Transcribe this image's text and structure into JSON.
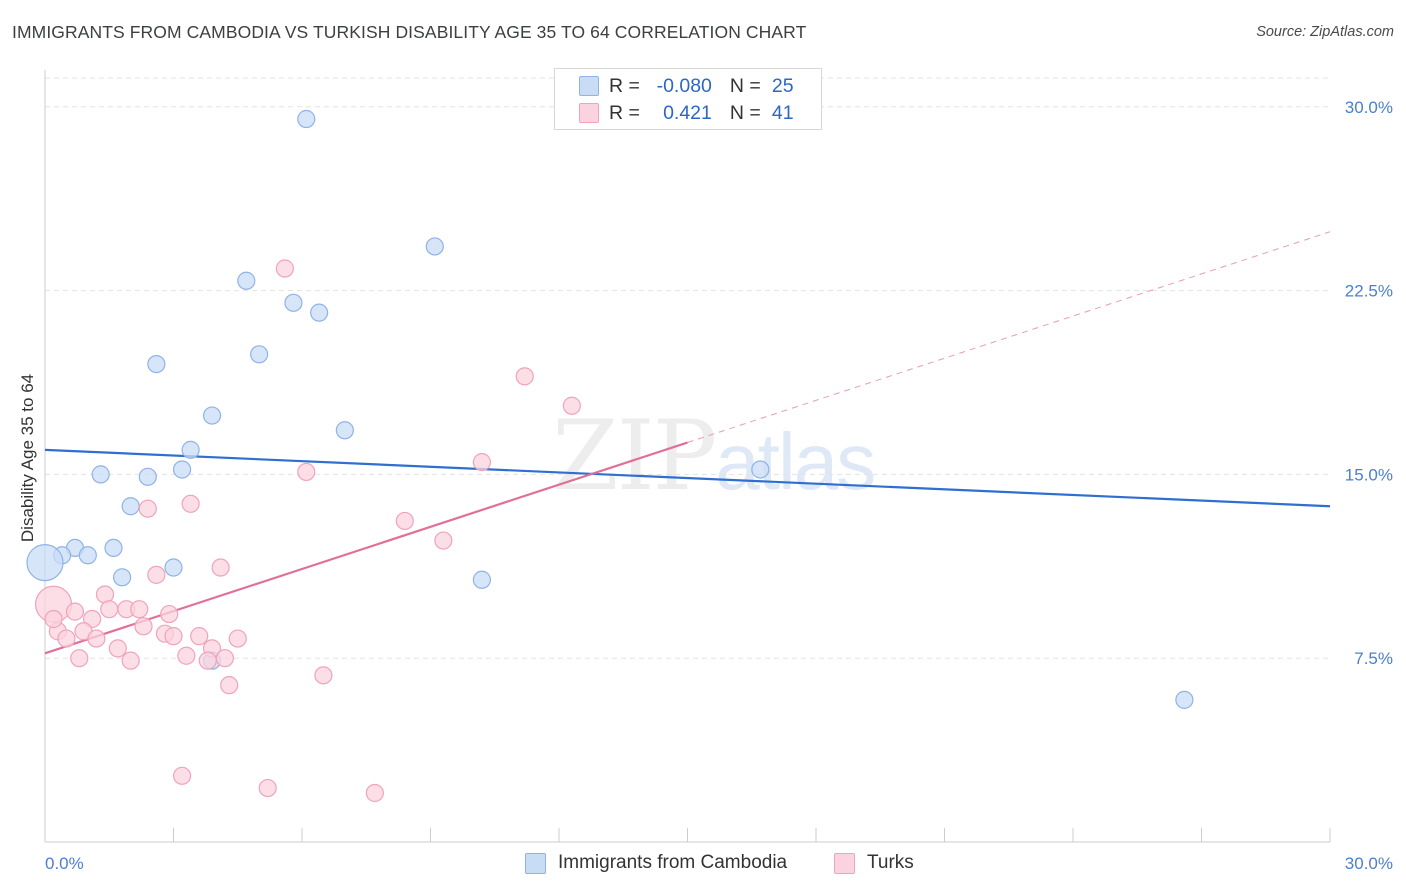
{
  "header": {
    "title": "IMMIGRANTS FROM CAMBODIA VS TURKISH DISABILITY AGE 35 TO 64 CORRELATION CHART",
    "source": "Source: ZipAtlas.com"
  },
  "legend": {
    "blue": {
      "r_label": "R =",
      "r_value": "-0.080",
      "n_label": "N =",
      "n_value": "25"
    },
    "pink": {
      "r_label": "R =",
      "r_value": "0.421",
      "n_label": "N =",
      "n_value": "41"
    }
  },
  "bottom_legend": {
    "blue_label": "Immigrants from Cambodia",
    "pink_label": "Turks"
  },
  "watermark": {
    "zip": "ZIP",
    "atlas": "atlas"
  },
  "colors": {
    "blue_fill": "#c9dcf6",
    "blue_stroke": "#8fb3e6",
    "blue_line": "#2f6fd0",
    "pink_fill": "#fbd3df",
    "pink_stroke": "#f0a3bb",
    "pink_line": "#e0709a",
    "grid": "#e3e3e3",
    "tick_text": "#4a7fd0"
  },
  "chart_data": {
    "type": "scatter",
    "title": "IMMIGRANTS FROM CAMBODIA VS TURKISH DISABILITY AGE 35 TO 64 CORRELATION CHART",
    "xlabel": "",
    "ylabel": "Disability Age 35 to 64",
    "xlim": [
      0,
      30
    ],
    "ylim": [
      0,
      31.5
    ],
    "x_tick_labels": [
      "0.0%",
      "30.0%"
    ],
    "y_ticks": [
      7.5,
      15.0,
      22.5,
      30.0
    ],
    "y_tick_labels": [
      "7.5%",
      "15.0%",
      "22.5%",
      "30.0%"
    ],
    "grid": true,
    "series": [
      {
        "name": "Immigrants from Cambodia",
        "color": "blue",
        "points": [
          {
            "x": 6.1,
            "y": 29.5,
            "r": "normal"
          },
          {
            "x": 9.1,
            "y": 24.3,
            "r": "normal"
          },
          {
            "x": 4.7,
            "y": 22.9,
            "r": "normal"
          },
          {
            "x": 6.4,
            "y": 21.6,
            "r": "normal"
          },
          {
            "x": 5.8,
            "y": 22.0,
            "r": "normal"
          },
          {
            "x": 5.0,
            "y": 19.9,
            "r": "normal"
          },
          {
            "x": 2.6,
            "y": 19.5,
            "r": "normal"
          },
          {
            "x": 3.9,
            "y": 17.4,
            "r": "normal"
          },
          {
            "x": 7.0,
            "y": 16.8,
            "r": "normal"
          },
          {
            "x": 3.4,
            "y": 16.0,
            "r": "normal"
          },
          {
            "x": 3.2,
            "y": 15.2,
            "r": "normal"
          },
          {
            "x": 1.3,
            "y": 15.0,
            "r": "normal"
          },
          {
            "x": 2.4,
            "y": 14.9,
            "r": "normal"
          },
          {
            "x": 16.7,
            "y": 15.2,
            "r": "normal"
          },
          {
            "x": 2.0,
            "y": 13.7,
            "r": "normal"
          },
          {
            "x": 0.7,
            "y": 12.0,
            "r": "normal"
          },
          {
            "x": 1.6,
            "y": 12.0,
            "r": "normal"
          },
          {
            "x": 1.0,
            "y": 11.7,
            "r": "normal"
          },
          {
            "x": 0.4,
            "y": 11.7,
            "r": "normal"
          },
          {
            "x": 3.0,
            "y": 11.2,
            "r": "normal"
          },
          {
            "x": 1.8,
            "y": 10.8,
            "r": "normal"
          },
          {
            "x": 10.2,
            "y": 10.7,
            "r": "normal"
          },
          {
            "x": 0.0,
            "y": 11.4,
            "r": "large"
          },
          {
            "x": 3.9,
            "y": 7.4,
            "r": "normal"
          },
          {
            "x": 26.6,
            "y": 5.8,
            "r": "normal"
          }
        ],
        "trend": {
          "x1": 0,
          "y1": 16.0,
          "x2": 30,
          "y2": 13.7
        }
      },
      {
        "name": "Turks",
        "color": "pink",
        "points": [
          {
            "x": 5.6,
            "y": 23.4,
            "r": "normal"
          },
          {
            "x": 11.2,
            "y": 19.0,
            "r": "normal"
          },
          {
            "x": 12.3,
            "y": 17.8,
            "r": "normal"
          },
          {
            "x": 10.2,
            "y": 15.5,
            "r": "normal"
          },
          {
            "x": 6.1,
            "y": 15.1,
            "r": "normal"
          },
          {
            "x": 3.4,
            "y": 13.8,
            "r": "normal"
          },
          {
            "x": 2.4,
            "y": 13.6,
            "r": "normal"
          },
          {
            "x": 8.4,
            "y": 13.1,
            "r": "normal"
          },
          {
            "x": 9.3,
            "y": 12.3,
            "r": "normal"
          },
          {
            "x": 4.1,
            "y": 11.2,
            "r": "normal"
          },
          {
            "x": 2.6,
            "y": 10.9,
            "r": "normal"
          },
          {
            "x": 1.4,
            "y": 10.1,
            "r": "normal"
          },
          {
            "x": 0.2,
            "y": 9.7,
            "r": "large"
          },
          {
            "x": 0.7,
            "y": 9.4,
            "r": "normal"
          },
          {
            "x": 1.1,
            "y": 9.1,
            "r": "normal"
          },
          {
            "x": 1.5,
            "y": 9.5,
            "r": "normal"
          },
          {
            "x": 1.9,
            "y": 9.5,
            "r": "normal"
          },
          {
            "x": 2.2,
            "y": 9.5,
            "r": "normal"
          },
          {
            "x": 2.9,
            "y": 9.3,
            "r": "normal"
          },
          {
            "x": 2.3,
            "y": 8.8,
            "r": "normal"
          },
          {
            "x": 0.3,
            "y": 8.6,
            "r": "normal"
          },
          {
            "x": 0.5,
            "y": 8.3,
            "r": "normal"
          },
          {
            "x": 0.9,
            "y": 8.6,
            "r": "normal"
          },
          {
            "x": 1.2,
            "y": 8.3,
            "r": "normal"
          },
          {
            "x": 2.8,
            "y": 8.5,
            "r": "normal"
          },
          {
            "x": 3.0,
            "y": 8.4,
            "r": "normal"
          },
          {
            "x": 3.6,
            "y": 8.4,
            "r": "normal"
          },
          {
            "x": 4.5,
            "y": 8.3,
            "r": "normal"
          },
          {
            "x": 1.7,
            "y": 7.9,
            "r": "normal"
          },
          {
            "x": 3.9,
            "y": 7.9,
            "r": "normal"
          },
          {
            "x": 0.8,
            "y": 7.5,
            "r": "normal"
          },
          {
            "x": 2.0,
            "y": 7.4,
            "r": "normal"
          },
          {
            "x": 3.3,
            "y": 7.6,
            "r": "normal"
          },
          {
            "x": 3.8,
            "y": 7.4,
            "r": "normal"
          },
          {
            "x": 4.2,
            "y": 7.5,
            "r": "normal"
          },
          {
            "x": 6.5,
            "y": 6.8,
            "r": "normal"
          },
          {
            "x": 4.3,
            "y": 6.4,
            "r": "normal"
          },
          {
            "x": 3.2,
            "y": 2.7,
            "r": "normal"
          },
          {
            "x": 5.2,
            "y": 2.2,
            "r": "normal"
          },
          {
            "x": 7.7,
            "y": 2.0,
            "r": "normal"
          },
          {
            "x": 0.2,
            "y": 9.1,
            "r": "normal"
          }
        ],
        "trend": {
          "x1": 0,
          "y1": 7.7,
          "x2": 15.0,
          "y2": 16.3
        },
        "trend_extension": {
          "x1": 15.0,
          "y1": 16.3,
          "x2": 30,
          "y2": 24.9
        }
      }
    ]
  }
}
